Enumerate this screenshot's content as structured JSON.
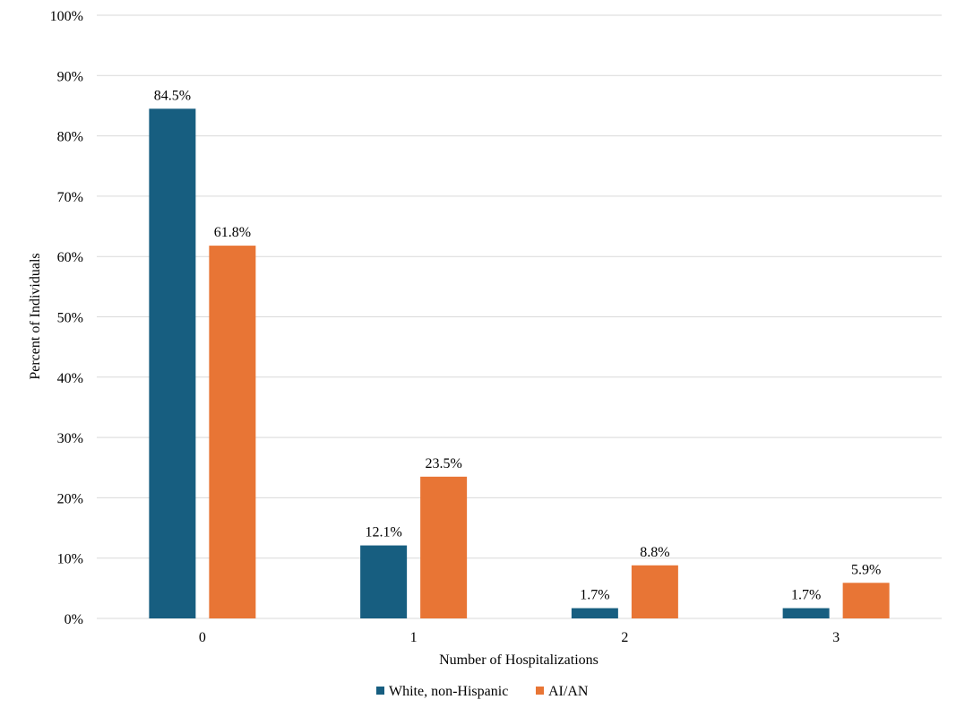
{
  "chart_data": {
    "type": "bar",
    "title": "",
    "xlabel": "Number of Hospitalizations",
    "ylabel": "Percent of Individuals",
    "categories": [
      "0",
      "1",
      "2",
      "3"
    ],
    "ylim": [
      0,
      100
    ],
    "yticks": [
      0,
      10,
      20,
      30,
      40,
      50,
      60,
      70,
      80,
      90,
      100
    ],
    "ytick_labels": [
      "0%",
      "10%",
      "20%",
      "30%",
      "40%",
      "50%",
      "60%",
      "70%",
      "80%",
      "90%",
      "100%"
    ],
    "grid": true,
    "legend_position": "bottom",
    "series": [
      {
        "name": "White, non-Hispanic",
        "color": "#175e80",
        "values": [
          84.5,
          12.1,
          1.7,
          1.7
        ],
        "labels": [
          "84.5%",
          "12.1%",
          "1.7%",
          "1.7%"
        ]
      },
      {
        "name": "AI/AN",
        "color": "#e87535",
        "values": [
          61.8,
          23.5,
          8.8,
          5.9
        ],
        "labels": [
          "61.8%",
          "23.5%",
          "8.8%",
          "5.9%"
        ]
      }
    ]
  }
}
